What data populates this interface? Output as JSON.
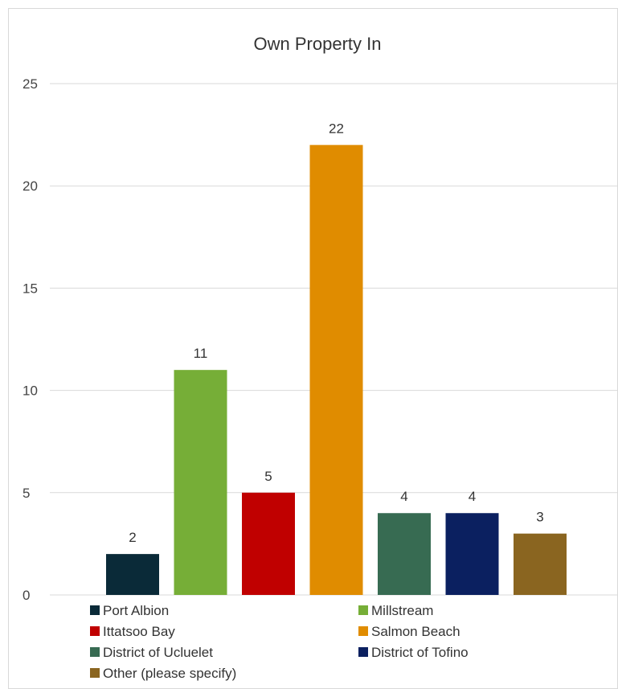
{
  "chart_data": {
    "type": "bar",
    "title": "Own Property In",
    "categories": [
      "Port Albion",
      "Millstream",
      "Ittatsoo Bay",
      "Salmon Beach",
      "District of Ucluelet",
      "District of Tofino",
      "Other (please specify)"
    ],
    "values": [
      2,
      11,
      5,
      22,
      4,
      4,
      3
    ],
    "colors": [
      "#0a2a38",
      "#76ae37",
      "#c00000",
      "#e08c00",
      "#376b52",
      "#0b2060",
      "#8a6520"
    ],
    "ylim": [
      0,
      25
    ],
    "yticks": [
      "0",
      "5",
      "10",
      "15",
      "20",
      "25"
    ],
    "grid": true,
    "legend_position": "bottom"
  }
}
